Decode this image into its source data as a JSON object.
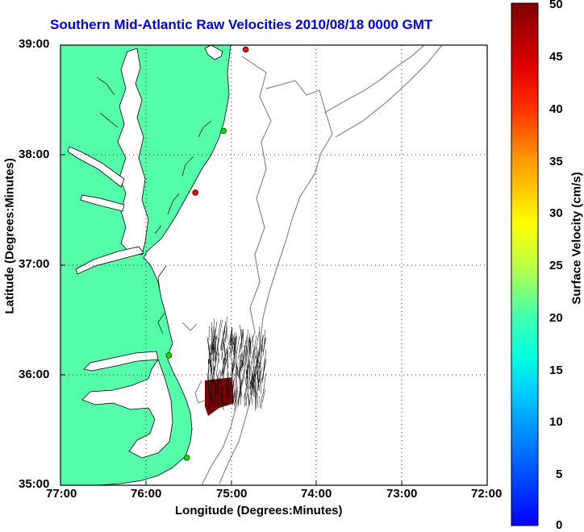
{
  "title": "Southern Mid-Atlantic Raw Velocities 2010/08/18 0000 GMT",
  "xlabel": "Longitude (Degrees:Minutes)",
  "ylabel": "Latitude (Degrees:Minutes)",
  "colorbar_label": "Surface Velocity (cm/s)",
  "x_ticks": [
    "77:00",
    "76:00",
    "75:00",
    "74:00",
    "73:00",
    "72:00"
  ],
  "y_ticks": [
    "39:00",
    "38:00",
    "37:00",
    "36:00",
    "35:00"
  ],
  "colorbar_ticks": [
    "50",
    "45",
    "40",
    "35",
    "30",
    "25",
    "20",
    "15",
    "10",
    "5",
    "0"
  ],
  "map": {
    "lon_range": [
      -77,
      -72
    ],
    "lat_range": [
      35,
      39
    ],
    "grid": "dotted",
    "colormap": "jet",
    "velocity_range_cm_s": [
      0,
      50
    ],
    "colors": {
      "land": "#55ffaa",
      "coast": "#000000",
      "isobath": "#888888",
      "title": "#0000e6",
      "vectors": "#000000",
      "max_velocity_fill": "#7f0000"
    },
    "stations": [
      {
        "lon": -74.83,
        "lat": 38.96,
        "color": "#ff0000"
      },
      {
        "lon": -75.09,
        "lat": 38.22,
        "color": "#00dd00"
      },
      {
        "lon": -75.42,
        "lat": 37.66,
        "color": "#ff0000"
      },
      {
        "lon": -75.73,
        "lat": 36.18,
        "color": "#00dd00"
      },
      {
        "lon": -75.52,
        "lat": 35.25,
        "color": "#00dd00"
      }
    ]
  }
}
